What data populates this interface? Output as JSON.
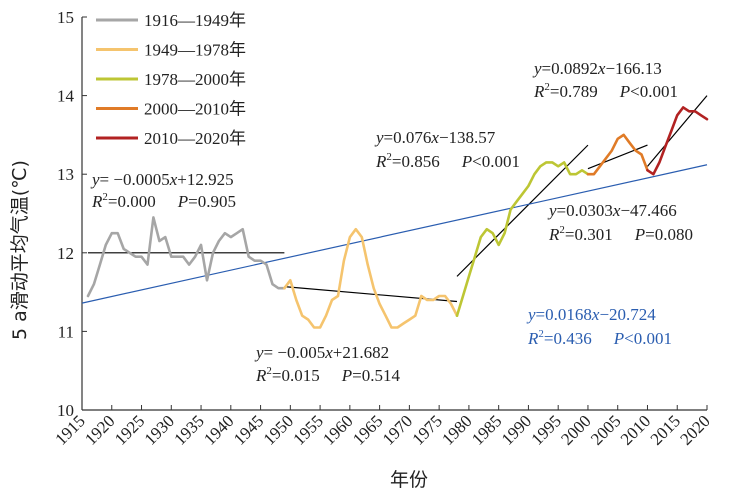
{
  "chart_data": {
    "type": "line",
    "xlabel": "年份",
    "ylabel": "5 a滑动平均气温(℃)",
    "xlim": [
      1915,
      2020
    ],
    "ylim": [
      10,
      15
    ],
    "x_ticks": [
      "1915",
      "1920",
      "1925",
      "1930",
      "1935",
      "1940",
      "1945",
      "1950",
      "1955",
      "1960",
      "1965",
      "1970",
      "1975",
      "1980",
      "1985",
      "1990",
      "1995",
      "2000",
      "2005",
      "2010",
      "2015",
      "2020"
    ],
    "y_ticks": [
      "10",
      "11",
      "12",
      "13",
      "14",
      "15"
    ],
    "grid": false,
    "legend_position": "top-left",
    "series": [
      {
        "name": "1916—1949年",
        "color": "#a6a6a6",
        "x": [
          1916,
          1917,
          1918,
          1919,
          1920,
          1921,
          1922,
          1923,
          1924,
          1925,
          1926,
          1927,
          1928,
          1929,
          1930,
          1931,
          1932,
          1933,
          1934,
          1935,
          1936,
          1937,
          1938,
          1939,
          1940,
          1941,
          1942,
          1943,
          1944,
          1945,
          1946,
          1947,
          1948,
          1949
        ],
        "y": [
          11.45,
          11.6,
          11.85,
          12.1,
          12.25,
          12.25,
          12.05,
          12.0,
          11.95,
          11.95,
          11.85,
          12.45,
          12.15,
          12.2,
          11.95,
          11.95,
          11.95,
          11.85,
          11.95,
          12.1,
          11.65,
          12.0,
          12.15,
          12.25,
          12.2,
          12.25,
          12.3,
          11.95,
          11.9,
          11.9,
          11.85,
          11.6,
          11.55,
          11.55
        ]
      },
      {
        "name": "1949—1978年",
        "color": "#f5c46e",
        "x": [
          1949,
          1950,
          1951,
          1952,
          1953,
          1954,
          1955,
          1956,
          1957,
          1958,
          1959,
          1960,
          1961,
          1962,
          1963,
          1964,
          1965,
          1966,
          1967,
          1968,
          1969,
          1970,
          1971,
          1972,
          1973,
          1974,
          1975,
          1976,
          1977,
          1978
        ],
        "y": [
          11.55,
          11.65,
          11.4,
          11.2,
          11.15,
          11.05,
          11.05,
          11.2,
          11.4,
          11.45,
          11.9,
          12.2,
          12.3,
          12.2,
          11.85,
          11.55,
          11.35,
          11.2,
          11.05,
          11.05,
          11.1,
          11.15,
          11.2,
          11.45,
          11.4,
          11.4,
          11.45,
          11.45,
          11.35,
          11.2
        ]
      },
      {
        "name": "1978—2000年",
        "color": "#bdc634",
        "x": [
          1978,
          1979,
          1980,
          1981,
          1982,
          1983,
          1984,
          1985,
          1986,
          1987,
          1988,
          1989,
          1990,
          1991,
          1992,
          1993,
          1994,
          1995,
          1996,
          1997,
          1998,
          1999,
          2000
        ],
        "y": [
          11.2,
          11.45,
          11.7,
          11.95,
          12.2,
          12.3,
          12.25,
          12.1,
          12.25,
          12.55,
          12.65,
          12.75,
          12.85,
          13.0,
          13.1,
          13.15,
          13.15,
          13.1,
          13.15,
          13.0,
          13.0,
          13.05,
          13.0
        ]
      },
      {
        "name": "2000—2010年",
        "color": "#e07b27",
        "x": [
          2000,
          2001,
          2002,
          2003,
          2004,
          2005,
          2006,
          2007,
          2008,
          2009,
          2010
        ],
        "y": [
          13.0,
          13.0,
          13.1,
          13.2,
          13.3,
          13.45,
          13.5,
          13.4,
          13.3,
          13.25,
          13.05
        ]
      },
      {
        "name": "2010—2020年",
        "color": "#b22222",
        "x": [
          2010,
          2011,
          2012,
          2013,
          2014,
          2015,
          2016,
          2017,
          2018,
          2019,
          2020
        ],
        "y": [
          13.05,
          13.0,
          13.15,
          13.35,
          13.55,
          13.75,
          13.85,
          13.8,
          13.8,
          13.75,
          13.7
        ]
      }
    ],
    "trendlines": [
      {
        "x": [
          1916,
          1949
        ],
        "y": [
          12.0,
          12.0
        ],
        "color": "#000000"
      },
      {
        "x": [
          1949,
          1978
        ],
        "y": [
          11.57,
          11.38
        ],
        "color": "#000000"
      },
      {
        "x": [
          1978,
          2000
        ],
        "y": [
          11.7,
          13.37
        ],
        "color": "#000000"
      },
      {
        "x": [
          2000,
          2010
        ],
        "y": [
          13.07,
          13.37
        ],
        "color": "#000000"
      },
      {
        "x": [
          2010,
          2020
        ],
        "y": [
          13.1,
          14.0
        ],
        "color": "#000000"
      },
      {
        "x": [
          1915,
          2020
        ],
        "y": [
          11.36,
          13.12
        ],
        "color": "#2a5db0"
      }
    ],
    "annotations": [
      {
        "eq_pre": "y",
        "eq_post": "= −0.0005",
        "eq_x": "x",
        "eq_tail": "+12.925",
        "r2_label": "R",
        "r2_sup": "2",
        "r2_val": "=0.000",
        "p_label": "P",
        "p_val": "=0.905",
        "color": "#222222"
      },
      {
        "eq_pre": "y",
        "eq_post": "= −0.005",
        "eq_x": "x",
        "eq_tail": "+21.682",
        "r2_label": "R",
        "r2_sup": "2",
        "r2_val": "=0.015",
        "p_label": "P",
        "p_val": "=0.514",
        "color": "#222222"
      },
      {
        "eq_pre": "y",
        "eq_post": "=0.076",
        "eq_x": "x",
        "eq_tail": "−138.57",
        "r2_label": "R",
        "r2_sup": "2",
        "r2_val": "=0.856",
        "p_label": "P",
        "p_val": "<0.001",
        "color": "#222222"
      },
      {
        "eq_pre": "y",
        "eq_post": "=0.0892",
        "eq_x": "x",
        "eq_tail": "−166.13",
        "r2_label": "R",
        "r2_sup": "2",
        "r2_val": "=0.789",
        "p_label": "P",
        "p_val": "<0.001",
        "color": "#222222"
      },
      {
        "eq_pre": "y",
        "eq_post": "=0.0303",
        "eq_x": "x",
        "eq_tail": "−47.466",
        "r2_label": "R",
        "r2_sup": "2",
        "r2_val": "=0.301",
        "p_label": "P",
        "p_val": "=0.080",
        "color": "#222222"
      },
      {
        "eq_pre": "y",
        "eq_post": "=0.0168",
        "eq_x": "x",
        "eq_tail": "−20.724",
        "r2_label": "R",
        "r2_sup": "2",
        "r2_val": "=0.436",
        "p_label": "P",
        "p_val": "<0.001",
        "color": "#2a5db0"
      }
    ]
  }
}
